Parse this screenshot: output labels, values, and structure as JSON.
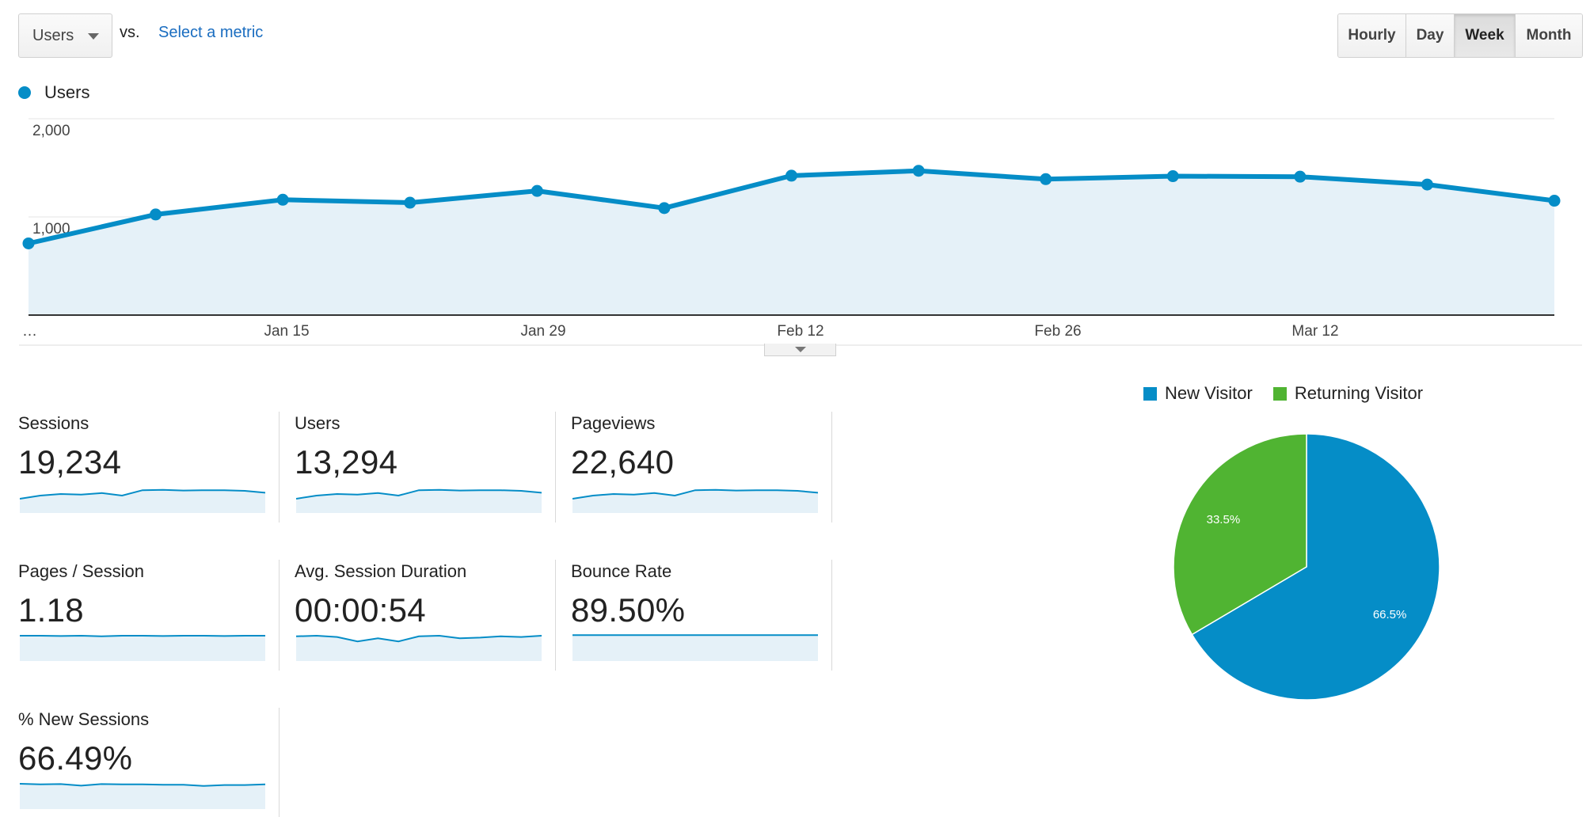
{
  "toolbar": {
    "metric_selected": "Users",
    "vs_label": "vs.",
    "select_metric_label": "Select a metric",
    "periods": [
      "Hourly",
      "Day",
      "Week",
      "Month"
    ],
    "active_period": "Week"
  },
  "chart_data": [
    {
      "type": "area",
      "series": [
        {
          "name": "Users",
          "values": [
            730,
            1025,
            1175,
            1145,
            1265,
            1090,
            1420,
            1470,
            1385,
            1415,
            1410,
            1330,
            1165
          ]
        }
      ],
      "x_tick_labels": [
        "…",
        "Jan 15",
        "Jan 29",
        "Feb 12",
        "Feb 26",
        "Mar 12"
      ],
      "y_tick_labels": [
        "2,000",
        "1,000"
      ],
      "ylim": [
        0,
        2000
      ],
      "grid": true,
      "legend_position": "top-left",
      "color": "#058dc7",
      "fill_color": "#e5f1f8"
    },
    {
      "type": "pie",
      "categories": [
        "New Visitor",
        "Returning Visitor"
      ],
      "values": [
        66.5,
        33.5
      ],
      "labels": [
        "66.5%",
        "33.5%"
      ],
      "colors": [
        "#058dc7",
        "#50b432"
      ],
      "legend_position": "top"
    }
  ],
  "scorecards": [
    {
      "label": "Sessions",
      "value": "19,234",
      "spark": [
        0.45,
        0.55,
        0.6,
        0.58,
        0.63,
        0.55,
        0.72,
        0.73,
        0.71,
        0.72,
        0.72,
        0.7,
        0.64
      ]
    },
    {
      "label": "Users",
      "value": "13,294",
      "spark": [
        0.45,
        0.55,
        0.6,
        0.58,
        0.63,
        0.55,
        0.72,
        0.73,
        0.71,
        0.72,
        0.72,
        0.7,
        0.64
      ]
    },
    {
      "label": "Pageviews",
      "value": "22,640",
      "spark": [
        0.45,
        0.55,
        0.6,
        0.58,
        0.63,
        0.55,
        0.72,
        0.73,
        0.71,
        0.72,
        0.72,
        0.7,
        0.64
      ]
    },
    {
      "label": "Pages / Session",
      "value": "1.18",
      "spark": [
        0.8,
        0.8,
        0.79,
        0.8,
        0.78,
        0.8,
        0.8,
        0.79,
        0.8,
        0.8,
        0.79,
        0.8,
        0.8
      ]
    },
    {
      "label": "Avg. Session Duration",
      "value": "00:00:54",
      "spark": [
        0.78,
        0.8,
        0.76,
        0.62,
        0.72,
        0.62,
        0.78,
        0.8,
        0.72,
        0.74,
        0.78,
        0.76,
        0.8
      ]
    },
    {
      "label": "Bounce Rate",
      "value": "89.50%",
      "spark": [
        0.82,
        0.82,
        0.82,
        0.82,
        0.82,
        0.82,
        0.82,
        0.82,
        0.82,
        0.82,
        0.82,
        0.82,
        0.82
      ]
    },
    {
      "label": "% New Sessions",
      "value": "66.49%",
      "spark": [
        0.8,
        0.78,
        0.79,
        0.74,
        0.79,
        0.78,
        0.78,
        0.77,
        0.77,
        0.73,
        0.76,
        0.76,
        0.78
      ]
    }
  ]
}
